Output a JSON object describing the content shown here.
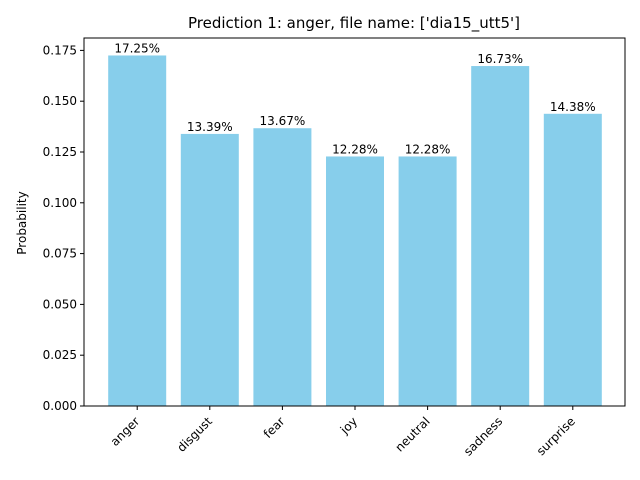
{
  "chart_data": {
    "type": "bar",
    "title": "Prediction 1: anger, file name: ['dia15_utt5']",
    "xlabel": "",
    "ylabel": "Probability",
    "categories": [
      "anger",
      "disgust",
      "fear",
      "joy",
      "neutral",
      "sadness",
      "surprise"
    ],
    "values": [
      0.1725,
      0.1339,
      0.1367,
      0.1228,
      0.1228,
      0.1673,
      0.1438
    ],
    "data_labels": [
      "17.25%",
      "13.39%",
      "13.67%",
      "12.28%",
      "12.28%",
      "16.73%",
      "14.38%"
    ],
    "yticks": [
      "0.000",
      "0.025",
      "0.050",
      "0.075",
      "0.100",
      "0.125",
      "0.150",
      "0.175"
    ],
    "ylim": [
      0,
      0.1811
    ],
    "bar_color": "#87ceeb",
    "grid": false,
    "legend": "none"
  }
}
